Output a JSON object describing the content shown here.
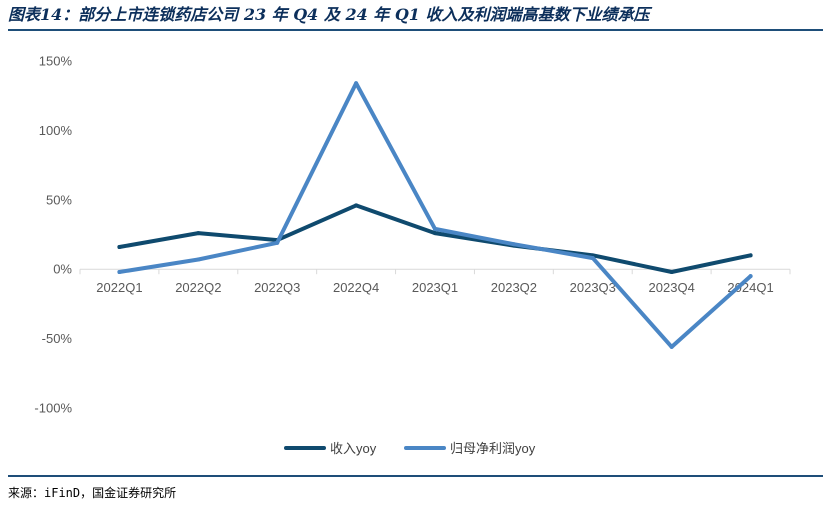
{
  "title": "图表14：部分上市连锁药店公司 23 年 Q4 及 24 年 Q1 收入及利润端高基数下业绩承压",
  "source": "来源：iFinD，国金证券研究所",
  "colors": {
    "revenue": "#0f4a6e",
    "profit": "#4a86c5",
    "axis": "#d9d9d9",
    "rule": "#1e4e79"
  },
  "chart_data": {
    "type": "line",
    "title": "",
    "xlabel": "",
    "ylabel": "",
    "categories": [
      "2022Q1",
      "2022Q2",
      "2022Q3",
      "2022Q4",
      "2023Q1",
      "2023Q2",
      "2023Q3",
      "2023Q4",
      "2024Q1"
    ],
    "ylim": [
      -100,
      150
    ],
    "yticks": [
      -100,
      -50,
      0,
      50,
      100,
      150
    ],
    "ytick_labels": [
      "-100%",
      "-50%",
      "0%",
      "50%",
      "100%",
      "150%"
    ],
    "grid": false,
    "legend_position": "bottom",
    "series": [
      {
        "name": "收入yoy",
        "values": [
          16,
          26,
          21,
          46,
          26,
          17,
          10,
          -2,
          10
        ]
      },
      {
        "name": "归母净利润yoy",
        "values": [
          -2,
          7,
          19,
          134,
          29,
          18,
          8,
          -56,
          -5
        ]
      }
    ]
  }
}
